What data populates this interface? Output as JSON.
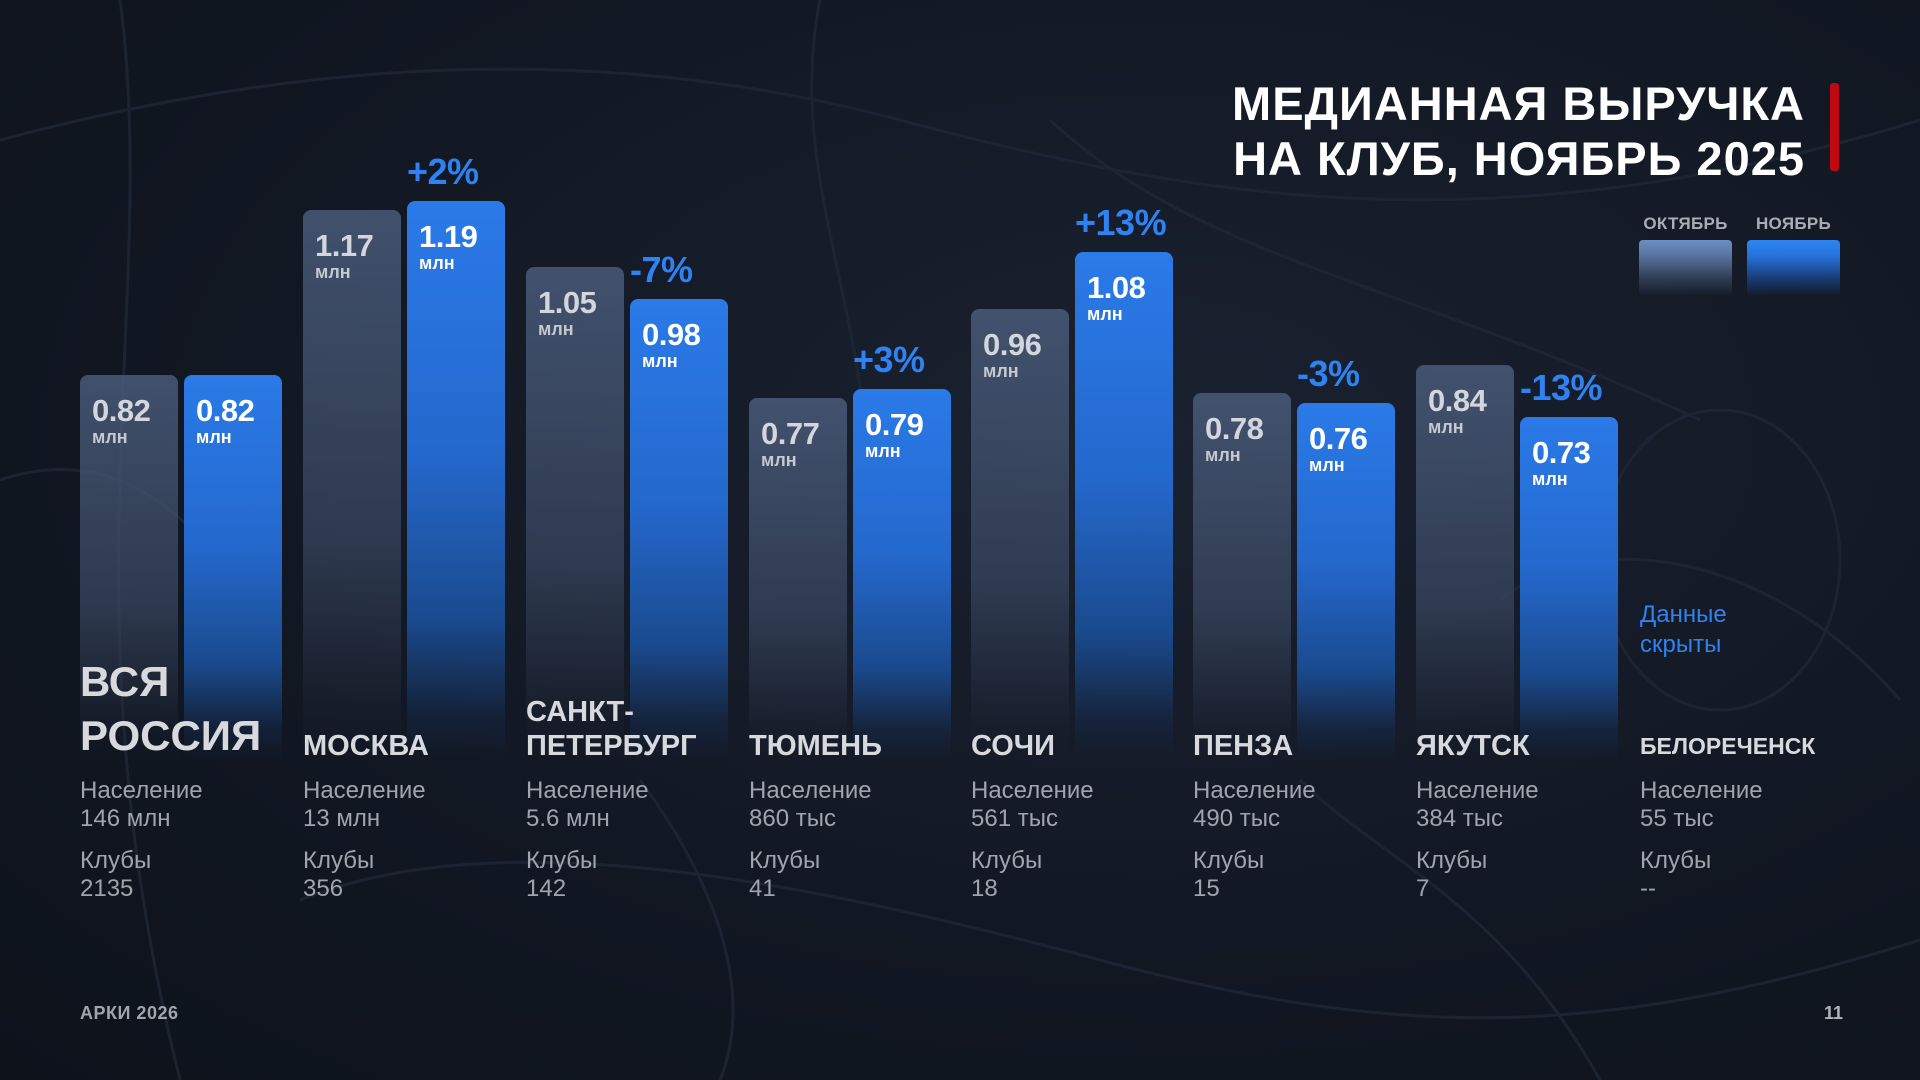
{
  "title": {
    "line1": "МЕДИАННАЯ ВЫРУЧКА",
    "line2": "НА КЛУБ, НОЯБРЬ 2025"
  },
  "legend": [
    {
      "label": "ОКТЯБРЬ",
      "color": "#6b8fc5"
    },
    {
      "label": "НОЯБРЬ",
      "color": "#2f86f4"
    }
  ],
  "colors": {
    "accent": "#c00812",
    "change": "#2f82f2",
    "october": "#4e6080",
    "november": "#2a7ae8"
  },
  "chart_data": {
    "type": "bar",
    "title": "МЕДИАННАЯ ВЫРУЧКА НА КЛУБ, НОЯБРЬ 2025",
    "unit": "млн",
    "ylim": [
      0,
      1.62
    ],
    "grid": false,
    "legend_position": "top-right",
    "categories": [
      "ВСЯ РОССИЯ",
      "МОСКВА",
      "САНКТ-ПЕТЕРБУРГ",
      "ТЮМЕНЬ",
      "СОЧИ",
      "ПЕНЗА",
      "ЯКУТСК",
      "БЕЛОРЕЧЕНСК"
    ],
    "series": [
      {
        "name": "ОКТЯБРЬ",
        "values": [
          0.82,
          1.17,
          1.05,
          0.77,
          0.96,
          0.78,
          0.84,
          null
        ],
        "labels": [
          "0.82",
          "1.17",
          "1.05",
          "0.77",
          "0.96",
          "0.78",
          "0.84",
          null
        ]
      },
      {
        "name": "НОЯБРЬ",
        "values": [
          0.82,
          1.19,
          0.98,
          0.79,
          1.08,
          0.76,
          0.73,
          null
        ],
        "labels": [
          "0.82",
          "1.19",
          "0.98",
          "0.79",
          "1.08",
          "0.76",
          "0.73",
          null
        ]
      }
    ],
    "changes": [
      null,
      "+2%",
      "-7%",
      "+3%",
      "+13%",
      "-3%",
      "-13%",
      null
    ],
    "annotations": [
      "Данные скрыты"
    ]
  },
  "cities": [
    {
      "name_lines": [
        "ВСЯ",
        "РОССИЯ"
      ],
      "size": "big",
      "pop_label": "Население",
      "pop": "146 млн",
      "clubs_label": "Клубы",
      "clubs": "2135"
    },
    {
      "name_lines": [
        "МОСКВА"
      ],
      "size": "normal",
      "pop_label": "Население",
      "pop": "13 млн",
      "clubs_label": "Клубы",
      "clubs": "356"
    },
    {
      "name_lines": [
        "САНКТ-",
        "ПЕТЕРБУРГ"
      ],
      "size": "normal",
      "pop_label": "Население",
      "pop": "5.6 млн",
      "clubs_label": "Клубы",
      "clubs": "142"
    },
    {
      "name_lines": [
        "ТЮМЕНЬ"
      ],
      "size": "normal",
      "pop_label": "Население",
      "pop": "860 тыс",
      "clubs_label": "Клубы",
      "clubs": "41"
    },
    {
      "name_lines": [
        "СОЧИ"
      ],
      "size": "normal",
      "pop_label": "Население",
      "pop": "561 тыс",
      "clubs_label": "Клубы",
      "clubs": "18"
    },
    {
      "name_lines": [
        "ПЕНЗА"
      ],
      "size": "normal",
      "pop_label": "Население",
      "pop": "490 тыс",
      "clubs_label": "Клубы",
      "clubs": "15"
    },
    {
      "name_lines": [
        "ЯКУТСК"
      ],
      "size": "normal",
      "pop_label": "Население",
      "pop": "384 тыс",
      "clubs_label": "Клубы",
      "clubs": "7"
    },
    {
      "name_lines": [
        "БЕЛОРЕЧЕНСК"
      ],
      "size": "small",
      "pop_label": "Население",
      "pop": "55 тыс",
      "clubs_label": "Клубы",
      "clubs": "--"
    }
  ],
  "hidden_note": {
    "line1": "Данные",
    "line2": "скрыты"
  },
  "footer": {
    "left": "АРКИ 2026",
    "page": "11"
  }
}
